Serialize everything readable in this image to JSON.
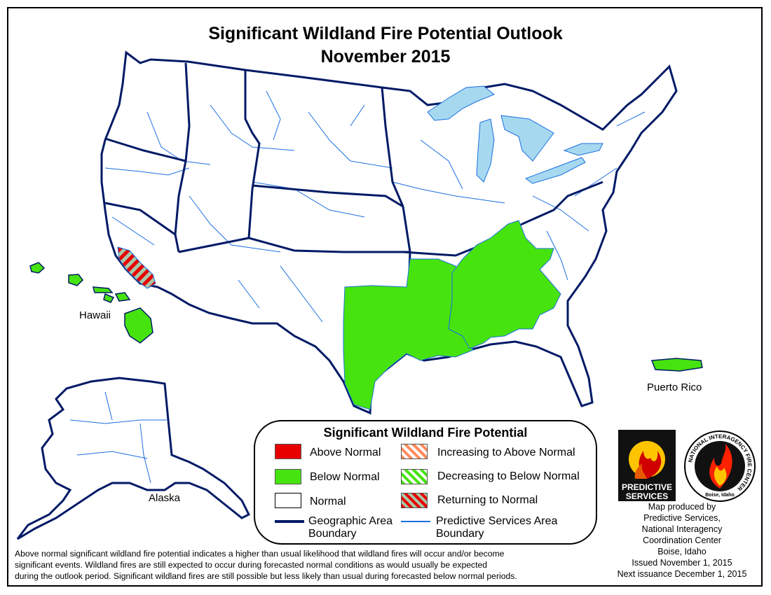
{
  "title": {
    "line1": "Significant Wildland Fire Potential Outlook",
    "line2": "November 2015"
  },
  "map": {
    "regions": [
      {
        "name": "Southern California",
        "category": "Returning to Normal"
      },
      {
        "name": "Texas / Southern Plains",
        "category": "Below Normal"
      },
      {
        "name": "Lower Mississippi Valley / Tennessee Valley",
        "category": "Below Normal"
      },
      {
        "name": "Hawaii",
        "category": "Below Normal"
      },
      {
        "name": "Puerto Rico",
        "category": "Below Normal"
      }
    ],
    "labels": {
      "hawaii": "Hawaii",
      "alaska": "Alaska",
      "puerto_rico": "Puerto Rico"
    }
  },
  "legend": {
    "title": "Significant Wildland Fire Potential",
    "items": [
      {
        "key": "above",
        "label": "Above Normal",
        "color": "#e80000"
      },
      {
        "key": "below",
        "label": "Below Normal",
        "color": "#47e30f"
      },
      {
        "key": "normal",
        "label": "Normal",
        "color": "#ffffff"
      },
      {
        "key": "increasing",
        "label": "Increasing to Above Normal",
        "colors": [
          "#ff8a5a",
          "#ffffff"
        ]
      },
      {
        "key": "decreasing",
        "label": "Decreasing to Below Normal",
        "colors": [
          "#47e30f",
          "#ffffff"
        ]
      },
      {
        "key": "returning",
        "label": "Returning to Normal",
        "colors": [
          "#e80000",
          "#a8c8a8"
        ]
      }
    ],
    "boundary_geo_line1": "Geographic Area",
    "boundary_geo_line2": "Boundary",
    "boundary_geo_color": "#001a66",
    "boundary_ps_line1": "Predictive Services Area",
    "boundary_ps_line2": "Boundary",
    "boundary_ps_color": "#1a6fe0"
  },
  "logos": {
    "predictive_line1": "PREDICTIVE",
    "predictive_line2": "SERVICES",
    "nifc_ring_text": "NATIONAL INTERAGENCY FIRE CENTER",
    "nifc_bottom_text": "Boise, Idaho"
  },
  "credits": {
    "line1": "Map produced by",
    "line2": "Predictive Services,",
    "line3": "National Interagency",
    "line4": "Coordination Center",
    "line5": "Boise, Idaho",
    "issued": "Issued November 1, 2015",
    "next": "Next issuance December 1, 2015"
  },
  "footnote": {
    "line1": "Above normal significant wildland fire potential indicates a higher than usual likelihood that wildland fires will occur and/or become",
    "line2": "significant events.  Wildland fires are still expected to occur during forecasted normal conditions as would usually be expected",
    "line3": "during the outlook period.  Significant wildland fires are still possible but less likely than usual during forecasted below normal periods."
  },
  "colors": {
    "below_normal": "#47e30f",
    "above_normal": "#e80000",
    "water": "#a6d8f0",
    "geo_boundary": "#001a66",
    "ps_boundary": "#1a6fe0"
  }
}
